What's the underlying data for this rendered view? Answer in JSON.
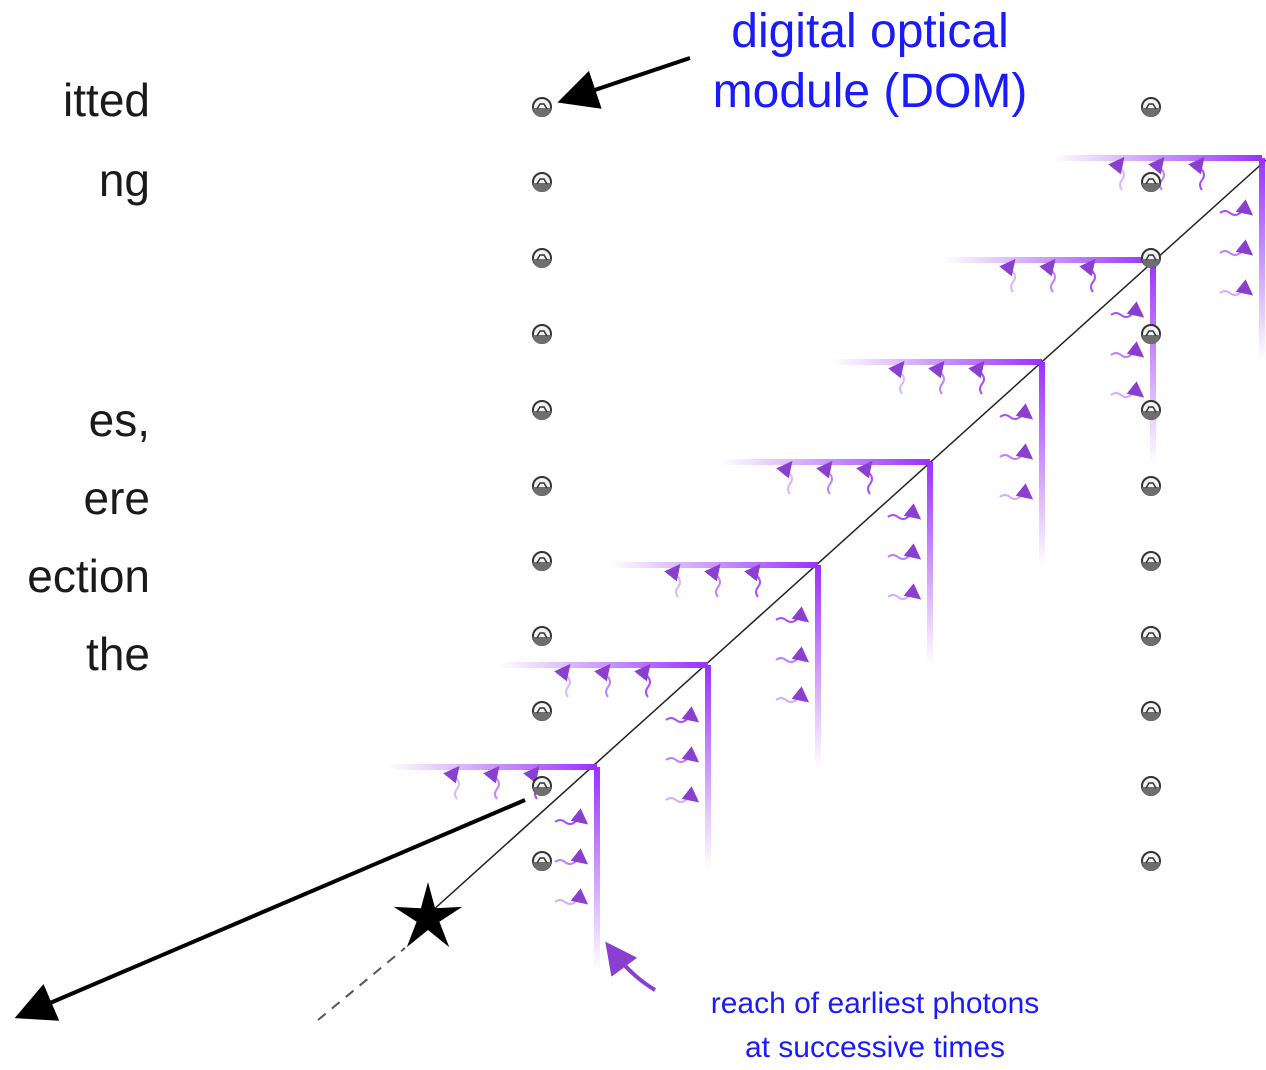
{
  "text_column": {
    "lines": [
      "itted",
      "ng",
      "",
      "",
      "es,",
      "ere",
      "ection",
      "the"
    ]
  },
  "labels": {
    "dom_label_line1": "digital optical",
    "dom_label_line2": "module (DOM)",
    "photon_label_line1": "reach of earliest photons",
    "photon_label_line2": "at successive times"
  },
  "colors": {
    "text": "#1a1a1a",
    "label_blue": "#1a1aff",
    "wavefront": "#9b30ff",
    "arrow_purple": "#8a3fd0",
    "dom_body": "#6e6e6e"
  },
  "icons": {
    "dom": "optical-module-icon",
    "vertex": "star-icon",
    "photon": "wavy-arrow-icon"
  }
}
